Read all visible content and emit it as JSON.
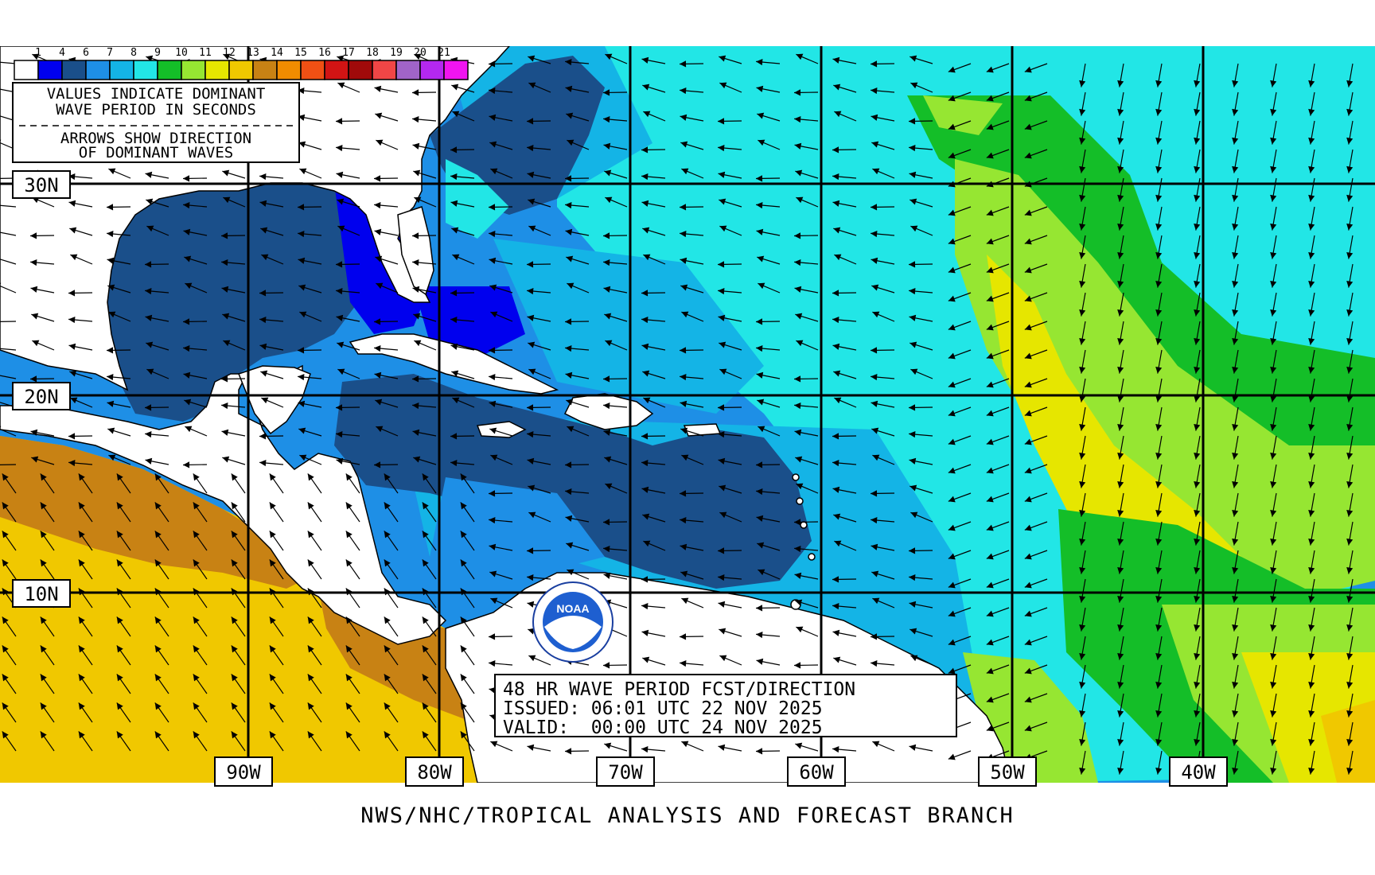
{
  "legend": {
    "values": [
      "1",
      "4",
      "6",
      "7",
      "8",
      "9",
      "10",
      "11",
      "12",
      "13",
      "14",
      "15",
      "16",
      "17",
      "18",
      "19",
      "20",
      "21"
    ],
    "colors": [
      "#ffffff",
      "#0000ee",
      "#1a4f8a",
      "#1e8fe6",
      "#14b4e6",
      "#22e6e6",
      "#14be28",
      "#96e632",
      "#e6e600",
      "#f0c800",
      "#c88214",
      "#f08c00",
      "#f05014",
      "#d21414",
      "#a00a0a",
      "#f04646",
      "#a064c8",
      "#b428f0",
      "#f014f0"
    ]
  },
  "info_box": {
    "line1": "VALUES INDICATE DOMINANT",
    "line2": "WAVE PERIOD IN SECONDS",
    "line3": "ARROWS SHOW DIRECTION",
    "line4": "OF DOMINANT WAVES"
  },
  "lat_labels": [
    "30N",
    "20N",
    "10N"
  ],
  "lon_labels": [
    "90W",
    "80W",
    "70W",
    "60W",
    "50W",
    "40W"
  ],
  "forecast": {
    "line1": "48 HR WAVE PERIOD FCST/DIRECTION",
    "line2": "ISSUED: 06:01 UTC 22 NOV 2025",
    "line3": "VALID:  00:00 UTC 24 NOV 2025"
  },
  "logo": {
    "text": "NOAA"
  },
  "footer": "NWS/NHC/TROPICAL ANALYSIS AND FORECAST BRANCH"
}
